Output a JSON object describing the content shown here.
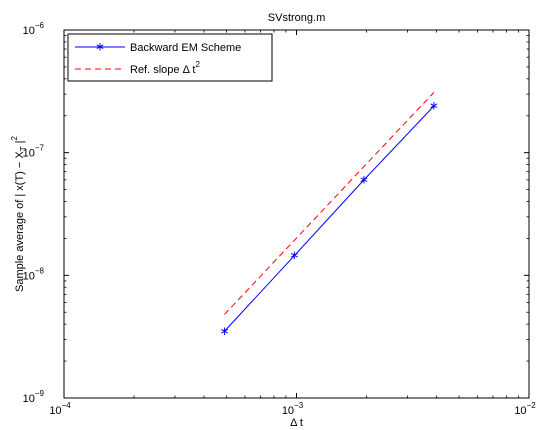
{
  "chart_data": {
    "type": "line",
    "title": "SVstrong.m",
    "xlabel": "Δ t",
    "ylabel_prefix": "Sample average of | x(T) − X",
    "ylabel_subscript": "T",
    "ylabel_suffix": " |",
    "ylabel_superscript": "2",
    "xscale": "log",
    "yscale": "log",
    "xlim": [
      0.0001,
      0.01
    ],
    "ylim": [
      1e-09,
      1e-06
    ],
    "grid": false,
    "legend_position": "top-left",
    "x_ticks": [
      {
        "value": 0.0001,
        "base": "10",
        "exp": "−4"
      },
      {
        "value": 0.001,
        "base": "10",
        "exp": "−3"
      },
      {
        "value": 0.01,
        "base": "10",
        "exp": "−2"
      }
    ],
    "y_ticks": [
      {
        "value": 1e-09,
        "base": "10",
        "exp": "−9"
      },
      {
        "value": 1e-08,
        "base": "10",
        "exp": "−8"
      },
      {
        "value": 1e-07,
        "base": "10",
        "exp": "−7"
      },
      {
        "value": 1e-06,
        "base": "10",
        "exp": "−6"
      }
    ],
    "series": [
      {
        "name": "Backward EM Scheme",
        "color": "#0000ff",
        "line_style": "solid",
        "marker": "asterisk",
        "x": [
          0.00049,
          0.00098,
          0.00195,
          0.0039
        ],
        "y": [
          3.5e-09,
          1.45e-08,
          6e-08,
          2.4e-07
        ]
      },
      {
        "name": "Ref. slope Δ t",
        "name_superscript": "2",
        "color": "#ff0000",
        "line_style": "dashed",
        "marker": "none",
        "x": [
          0.00049,
          0.0039
        ],
        "y": [
          4.8e-09,
          3.1e-07
        ]
      }
    ]
  }
}
